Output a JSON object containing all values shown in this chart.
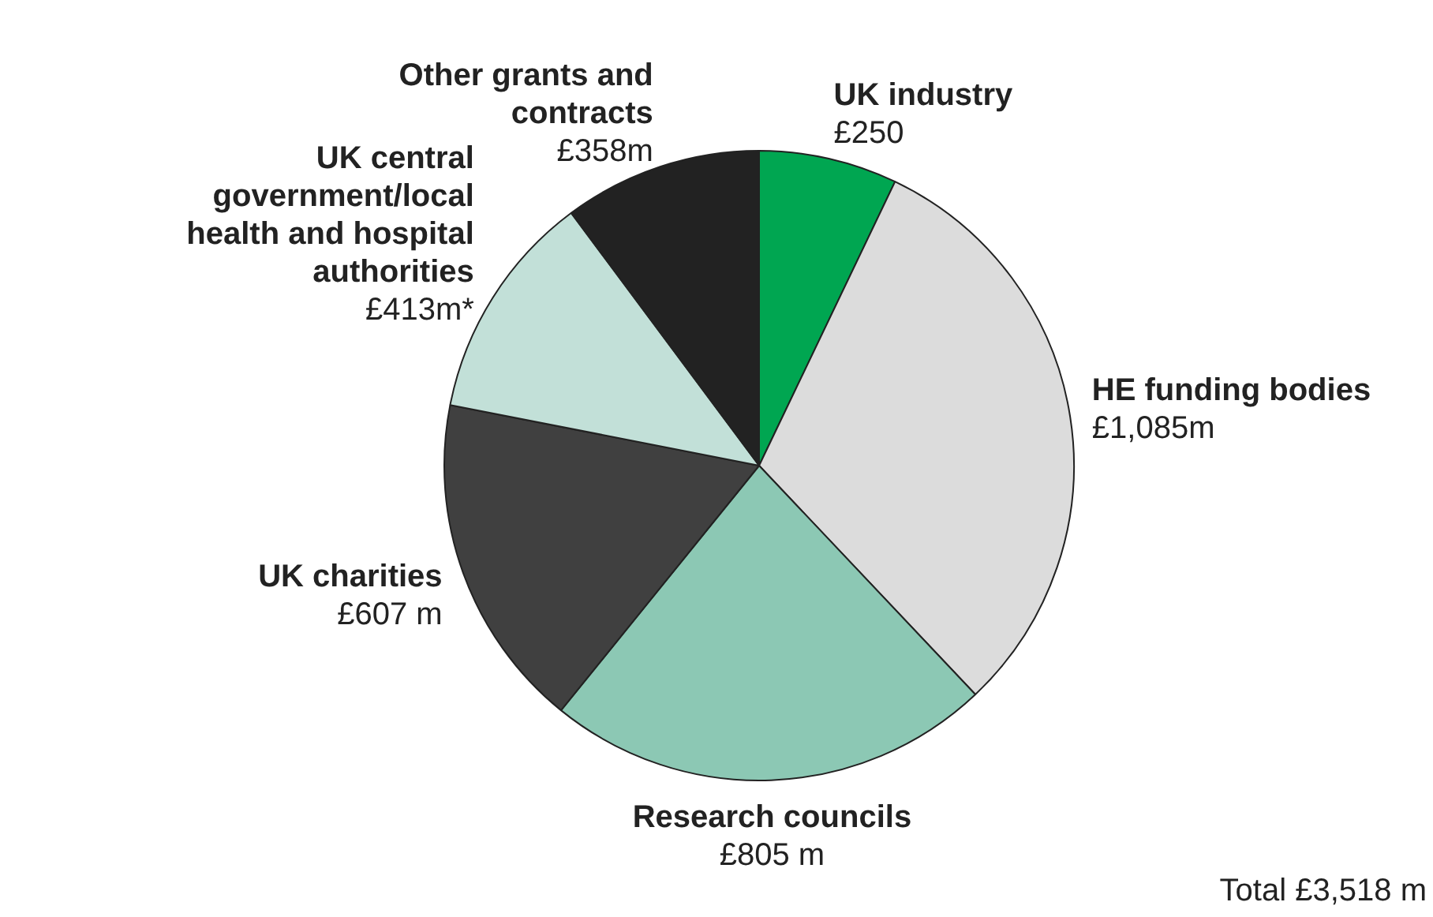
{
  "chart_data": {
    "type": "pie",
    "categories": [
      "UK industry",
      "HE funding bodies",
      "Research councils",
      "UK charities",
      "UK central government/local health and hospital authorities",
      "Other grants and contracts"
    ],
    "values": [
      250,
      1085,
      805,
      607,
      413,
      358
    ],
    "colors": [
      "#00a651",
      "#dcdcdc",
      "#8cc8b4",
      "#404040",
      "#c2e0d8",
      "#222222"
    ],
    "value_labels": [
      "£250",
      "£1,085m",
      "£805 m",
      "£607 m",
      "£413m*",
      "£358m"
    ],
    "annotations": [
      "Total £3,518 m"
    ],
    "legend": false
  }
}
